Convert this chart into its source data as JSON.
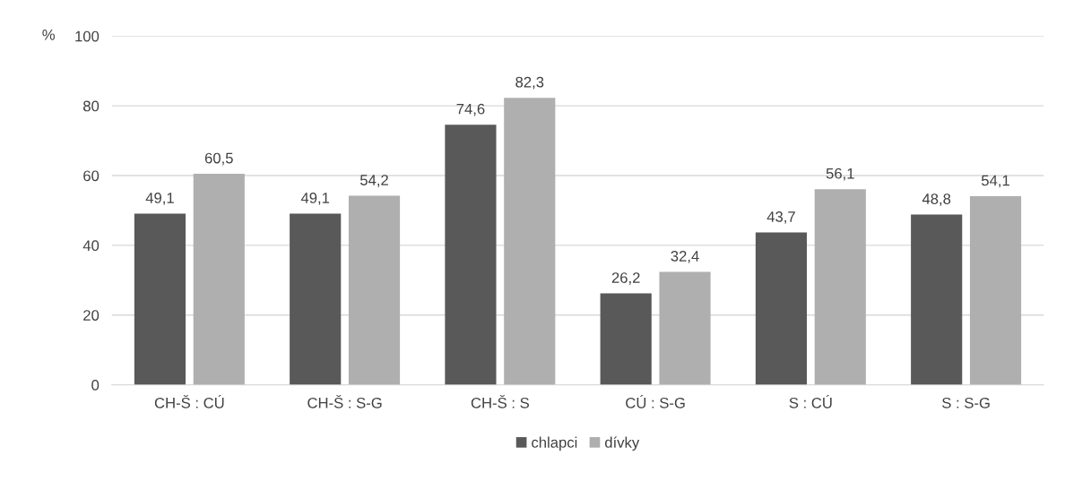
{
  "chart_data": {
    "type": "bar",
    "ylabel": "%",
    "categories": [
      "CH-Š : CÚ",
      "CH-Š : S-G",
      "CH-Š : S",
      "CÚ : S-G",
      "S : CÚ",
      "S : S-G"
    ],
    "series": [
      {
        "name": "chlapci",
        "color": "#595959",
        "values": [
          49.1,
          49.1,
          74.6,
          26.2,
          43.7,
          48.8
        ],
        "value_labels": [
          "49,1",
          "49,1",
          "74,6",
          "26,2",
          "43,7",
          "48,8"
        ]
      },
      {
        "name": "dívky",
        "color": "#afafaf",
        "values": [
          60.5,
          54.2,
          82.3,
          32.4,
          56.1,
          54.1
        ],
        "value_labels": [
          "60,5",
          "54,2",
          "82,3",
          "32,4",
          "56,1",
          "54,1"
        ]
      }
    ],
    "ylim": [
      0,
      100
    ],
    "yticks": [
      0,
      20,
      40,
      60,
      80,
      100
    ],
    "grid": "y",
    "legend": "bottom"
  }
}
